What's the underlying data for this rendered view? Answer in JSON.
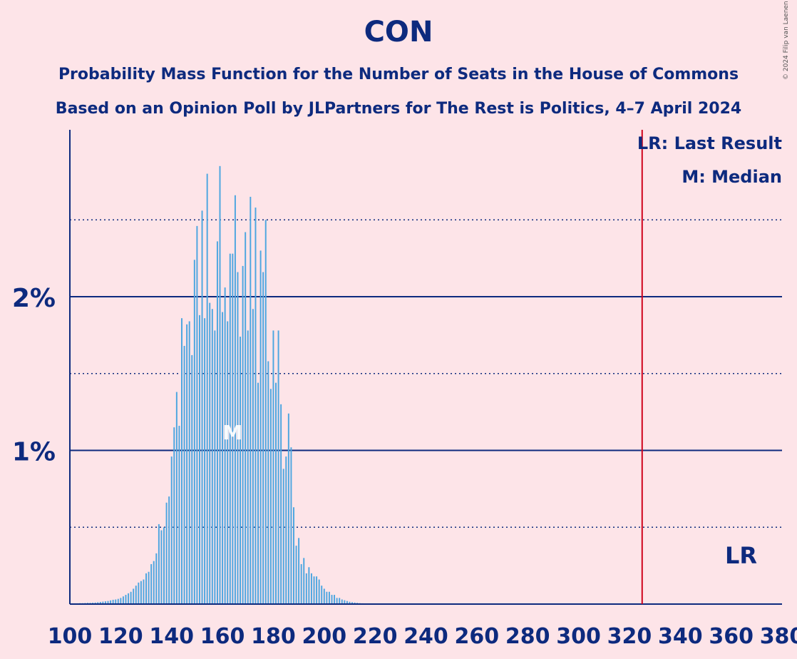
{
  "title": "CON",
  "subtitle_1": "Probability Mass Function for the Number of Seats in the House of Commons",
  "subtitle_2": "Based on an Opinion Poll by JLPartners for The Rest is Politics, 4–7 April 2024",
  "copyright": "© 2024 Filip van Laenen",
  "legend": {
    "lr": "LR: Last Result",
    "m": "M: Median"
  },
  "colors": {
    "background": "#fde4e8",
    "bar": "#4da6e0",
    "axis": "#0d2a7e",
    "last_result_line": "#d0021b"
  },
  "chart_data": {
    "type": "bar",
    "xlim": [
      100,
      380
    ],
    "ylim": [
      0,
      3.1
    ],
    "x_ticks": [
      100,
      120,
      140,
      160,
      180,
      200,
      220,
      240,
      260,
      280,
      300,
      320,
      340,
      360,
      380
    ],
    "x_tick_labels": [
      "100",
      "120",
      "140",
      "160",
      "180",
      "200",
      "220",
      "240",
      "260",
      "280",
      "300",
      "320",
      "340",
      "360",
      "380"
    ],
    "y_ticks_major": [
      1,
      2
    ],
    "y_tick_labels": [
      "1%",
      "2%"
    ],
    "y_ticks_minor": [
      0.5,
      1.5,
      2.5
    ],
    "last_result": 325,
    "last_result_label": "LR",
    "median": 164,
    "median_label": "M",
    "seats": [
      100,
      101,
      102,
      103,
      104,
      105,
      106,
      107,
      108,
      109,
      110,
      111,
      112,
      113,
      114,
      115,
      116,
      117,
      118,
      119,
      120,
      121,
      122,
      123,
      124,
      125,
      126,
      127,
      128,
      129,
      130,
      131,
      132,
      133,
      134,
      135,
      136,
      137,
      138,
      139,
      140,
      141,
      142,
      143,
      144,
      145,
      146,
      147,
      148,
      149,
      150,
      151,
      152,
      153,
      154,
      155,
      156,
      157,
      158,
      159,
      160,
      161,
      162,
      163,
      164,
      165,
      166,
      167,
      168,
      169,
      170,
      171,
      172,
      173,
      174,
      175,
      176,
      177,
      178,
      179,
      180,
      181,
      182,
      183,
      184,
      185,
      186,
      187,
      188,
      189,
      190,
      191,
      192,
      193,
      194,
      195,
      196,
      197,
      198,
      199,
      200,
      201,
      202,
      203,
      204,
      205,
      206,
      207,
      208,
      209,
      210,
      211,
      212,
      213,
      214,
      215,
      216,
      217,
      218,
      219,
      220
    ],
    "values": [
      0.005,
      0.005,
      0.005,
      0.005,
      0.006,
      0.006,
      0.007,
      0.008,
      0.008,
      0.009,
      0.01,
      0.012,
      0.014,
      0.016,
      0.018,
      0.02,
      0.024,
      0.028,
      0.03,
      0.034,
      0.04,
      0.05,
      0.06,
      0.07,
      0.08,
      0.1,
      0.12,
      0.14,
      0.15,
      0.16,
      0.2,
      0.21,
      0.26,
      0.28,
      0.33,
      0.52,
      0.48,
      0.5,
      0.66,
      0.7,
      0.96,
      1.15,
      1.38,
      1.16,
      1.86,
      1.68,
      1.82,
      1.84,
      1.62,
      2.24,
      2.46,
      1.88,
      2.56,
      1.86,
      2.8,
      1.96,
      1.92,
      1.78,
      2.36,
      2.85,
      1.9,
      2.06,
      1.84,
      2.28,
      2.28,
      2.66,
      2.16,
      1.74,
      2.2,
      2.42,
      1.78,
      2.65,
      1.92,
      2.58,
      1.44,
      2.3,
      2.16,
      2.5,
      1.58,
      1.4,
      1.78,
      1.44,
      1.78,
      1.3,
      0.88,
      0.96,
      1.24,
      1.02,
      0.63,
      0.38,
      0.43,
      0.26,
      0.3,
      0.2,
      0.24,
      0.2,
      0.18,
      0.18,
      0.16,
      0.12,
      0.1,
      0.08,
      0.08,
      0.06,
      0.06,
      0.04,
      0.04,
      0.03,
      0.025,
      0.02,
      0.015,
      0.012,
      0.01,
      0.008,
      0.006,
      0.005,
      0.004,
      0.003,
      0.003,
      0.002,
      0.002
    ]
  }
}
